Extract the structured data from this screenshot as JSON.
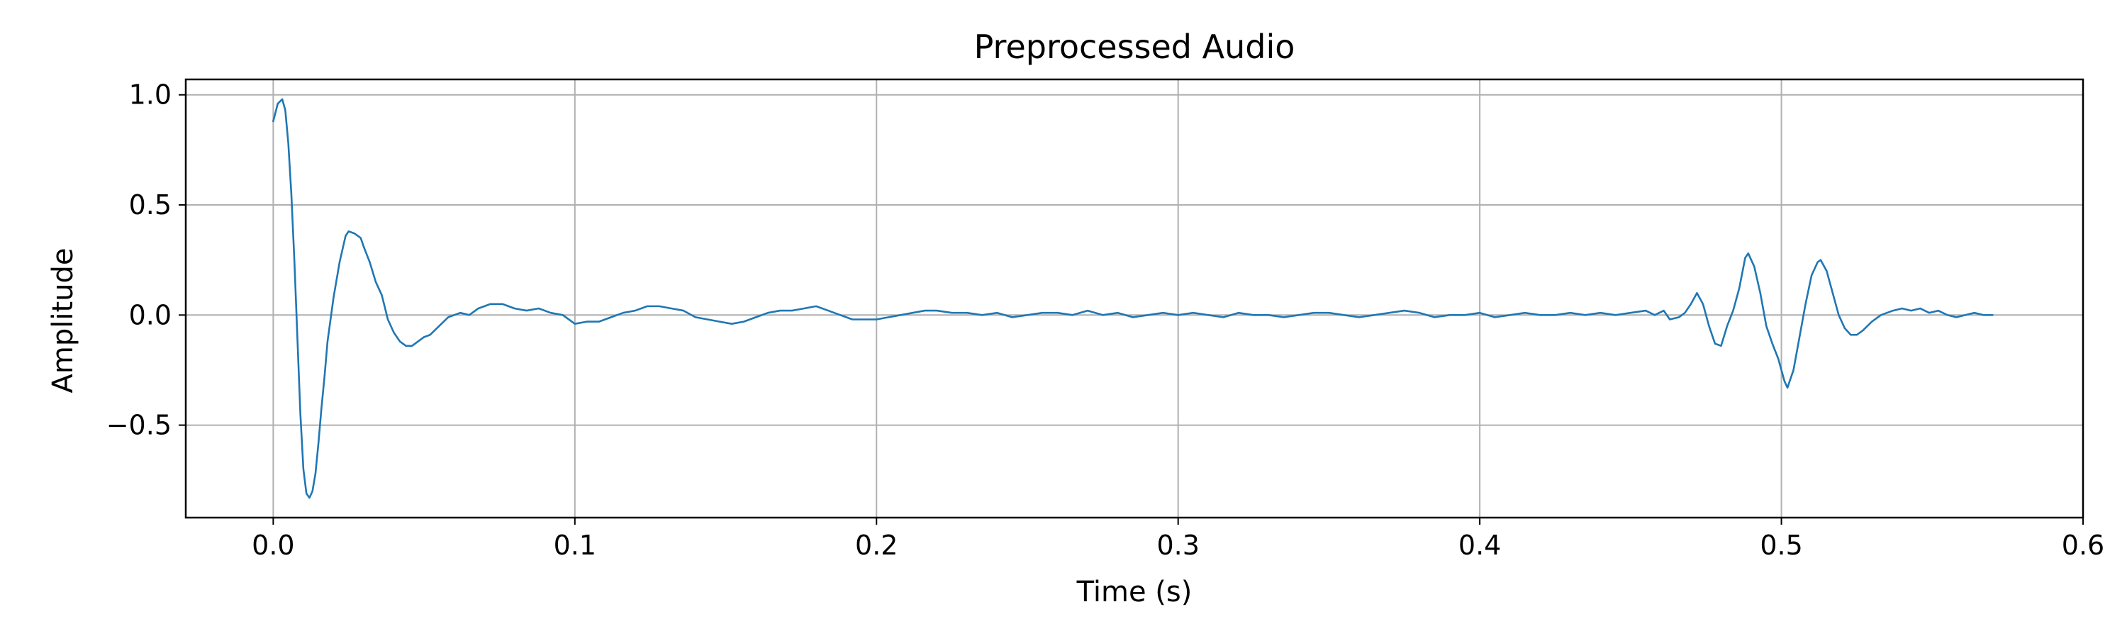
{
  "chart_data": {
    "type": "line",
    "title": "Preprocessed Audio",
    "xlabel": "Time (s)",
    "ylabel": "Amplitude",
    "xlim": [
      -0.029,
      0.6
    ],
    "ylim": [
      -0.92,
      1.07
    ],
    "grid": true,
    "x_ticks": [
      0.0,
      0.1,
      0.2,
      0.3,
      0.4,
      0.5,
      0.6
    ],
    "x_tick_labels": [
      "0.0",
      "0.1",
      "0.2",
      "0.3",
      "0.4",
      "0.5",
      "0.6"
    ],
    "y_ticks": [
      -0.5,
      0.0,
      0.5,
      1.0
    ],
    "y_tick_labels": [
      "−0.5",
      "0.0",
      "0.5",
      "1.0"
    ],
    "series": [
      {
        "color": "#1f77b4",
        "points": [
          [
            0.0,
            0.88
          ],
          [
            0.0015,
            0.96
          ],
          [
            0.003,
            0.98
          ],
          [
            0.004,
            0.93
          ],
          [
            0.005,
            0.78
          ],
          [
            0.006,
            0.55
          ],
          [
            0.007,
            0.25
          ],
          [
            0.008,
            -0.1
          ],
          [
            0.009,
            -0.45
          ],
          [
            0.01,
            -0.7
          ],
          [
            0.011,
            -0.81
          ],
          [
            0.012,
            -0.83
          ],
          [
            0.013,
            -0.8
          ],
          [
            0.014,
            -0.72
          ],
          [
            0.015,
            -0.58
          ],
          [
            0.016,
            -0.42
          ],
          [
            0.017,
            -0.28
          ],
          [
            0.018,
            -0.12
          ],
          [
            0.02,
            0.08
          ],
          [
            0.022,
            0.24
          ],
          [
            0.024,
            0.36
          ],
          [
            0.025,
            0.38
          ],
          [
            0.027,
            0.37
          ],
          [
            0.029,
            0.35
          ],
          [
            0.03,
            0.31
          ],
          [
            0.032,
            0.24
          ],
          [
            0.034,
            0.15
          ],
          [
            0.036,
            0.09
          ],
          [
            0.038,
            -0.02
          ],
          [
            0.04,
            -0.08
          ],
          [
            0.042,
            -0.12
          ],
          [
            0.044,
            -0.14
          ],
          [
            0.046,
            -0.14
          ],
          [
            0.048,
            -0.12
          ],
          [
            0.05,
            -0.1
          ],
          [
            0.052,
            -0.09
          ],
          [
            0.055,
            -0.05
          ],
          [
            0.058,
            -0.01
          ],
          [
            0.062,
            0.01
          ],
          [
            0.065,
            0.0
          ],
          [
            0.068,
            0.03
          ],
          [
            0.072,
            0.05
          ],
          [
            0.076,
            0.05
          ],
          [
            0.08,
            0.03
          ],
          [
            0.084,
            0.02
          ],
          [
            0.088,
            0.03
          ],
          [
            0.092,
            0.01
          ],
          [
            0.096,
            0.0
          ],
          [
            0.1,
            -0.04
          ],
          [
            0.104,
            -0.03
          ],
          [
            0.108,
            -0.03
          ],
          [
            0.112,
            -0.01
          ],
          [
            0.116,
            0.01
          ],
          [
            0.12,
            0.02
          ],
          [
            0.124,
            0.04
          ],
          [
            0.128,
            0.04
          ],
          [
            0.132,
            0.03
          ],
          [
            0.136,
            0.02
          ],
          [
            0.14,
            -0.01
          ],
          [
            0.144,
            -0.02
          ],
          [
            0.148,
            -0.03
          ],
          [
            0.152,
            -0.04
          ],
          [
            0.156,
            -0.03
          ],
          [
            0.16,
            -0.01
          ],
          [
            0.164,
            0.01
          ],
          [
            0.168,
            0.02
          ],
          [
            0.172,
            0.02
          ],
          [
            0.176,
            0.03
          ],
          [
            0.18,
            0.04
          ],
          [
            0.184,
            0.02
          ],
          [
            0.188,
            0.0
          ],
          [
            0.192,
            -0.02
          ],
          [
            0.196,
            -0.02
          ],
          [
            0.2,
            -0.02
          ],
          [
            0.204,
            -0.01
          ],
          [
            0.208,
            0.0
          ],
          [
            0.212,
            0.01
          ],
          [
            0.216,
            0.02
          ],
          [
            0.22,
            0.02
          ],
          [
            0.225,
            0.01
          ],
          [
            0.23,
            0.01
          ],
          [
            0.235,
            0.0
          ],
          [
            0.24,
            0.01
          ],
          [
            0.245,
            -0.01
          ],
          [
            0.25,
            0.0
          ],
          [
            0.255,
            0.01
          ],
          [
            0.26,
            0.01
          ],
          [
            0.265,
            0.0
          ],
          [
            0.27,
            0.02
          ],
          [
            0.275,
            0.0
          ],
          [
            0.28,
            0.01
          ],
          [
            0.285,
            -0.01
          ],
          [
            0.29,
            0.0
          ],
          [
            0.295,
            0.01
          ],
          [
            0.3,
            0.0
          ],
          [
            0.305,
            0.01
          ],
          [
            0.31,
            0.0
          ],
          [
            0.315,
            -0.01
          ],
          [
            0.32,
            0.01
          ],
          [
            0.325,
            0.0
          ],
          [
            0.33,
            0.0
          ],
          [
            0.335,
            -0.01
          ],
          [
            0.34,
            0.0
          ],
          [
            0.345,
            0.01
          ],
          [
            0.35,
            0.01
          ],
          [
            0.355,
            0.0
          ],
          [
            0.36,
            -0.01
          ],
          [
            0.365,
            0.0
          ],
          [
            0.37,
            0.01
          ],
          [
            0.375,
            0.02
          ],
          [
            0.38,
            0.01
          ],
          [
            0.385,
            -0.01
          ],
          [
            0.39,
            0.0
          ],
          [
            0.395,
            0.0
          ],
          [
            0.4,
            0.01
          ],
          [
            0.405,
            -0.01
          ],
          [
            0.41,
            0.0
          ],
          [
            0.415,
            0.01
          ],
          [
            0.42,
            0.0
          ],
          [
            0.425,
            0.0
          ],
          [
            0.43,
            0.01
          ],
          [
            0.435,
            0.0
          ],
          [
            0.44,
            0.01
          ],
          [
            0.445,
            0.0
          ],
          [
            0.45,
            0.01
          ],
          [
            0.455,
            0.02
          ],
          [
            0.458,
            0.0
          ],
          [
            0.461,
            0.02
          ],
          [
            0.463,
            -0.02
          ],
          [
            0.466,
            -0.01
          ],
          [
            0.468,
            0.01
          ],
          [
            0.47,
            0.05
          ],
          [
            0.472,
            0.1
          ],
          [
            0.474,
            0.05
          ],
          [
            0.476,
            -0.05
          ],
          [
            0.478,
            -0.13
          ],
          [
            0.48,
            -0.14
          ],
          [
            0.482,
            -0.05
          ],
          [
            0.484,
            0.02
          ],
          [
            0.486,
            0.12
          ],
          [
            0.488,
            0.26
          ],
          [
            0.489,
            0.28
          ],
          [
            0.491,
            0.22
          ],
          [
            0.493,
            0.1
          ],
          [
            0.495,
            -0.05
          ],
          [
            0.497,
            -0.13
          ],
          [
            0.499,
            -0.2
          ],
          [
            0.501,
            -0.3
          ],
          [
            0.502,
            -0.33
          ],
          [
            0.504,
            -0.25
          ],
          [
            0.506,
            -0.1
          ],
          [
            0.508,
            0.05
          ],
          [
            0.51,
            0.18
          ],
          [
            0.512,
            0.24
          ],
          [
            0.513,
            0.25
          ],
          [
            0.515,
            0.2
          ],
          [
            0.517,
            0.1
          ],
          [
            0.519,
            0.0
          ],
          [
            0.521,
            -0.06
          ],
          [
            0.523,
            -0.09
          ],
          [
            0.525,
            -0.09
          ],
          [
            0.527,
            -0.07
          ],
          [
            0.53,
            -0.03
          ],
          [
            0.533,
            0.0
          ],
          [
            0.537,
            0.02
          ],
          [
            0.54,
            0.03
          ],
          [
            0.543,
            0.02
          ],
          [
            0.546,
            0.03
          ],
          [
            0.549,
            0.01
          ],
          [
            0.552,
            0.02
          ],
          [
            0.555,
            0.0
          ],
          [
            0.558,
            -0.01
          ],
          [
            0.561,
            0.0
          ],
          [
            0.564,
            0.01
          ],
          [
            0.567,
            0.0
          ],
          [
            0.57,
            0.0
          ]
        ]
      }
    ]
  }
}
